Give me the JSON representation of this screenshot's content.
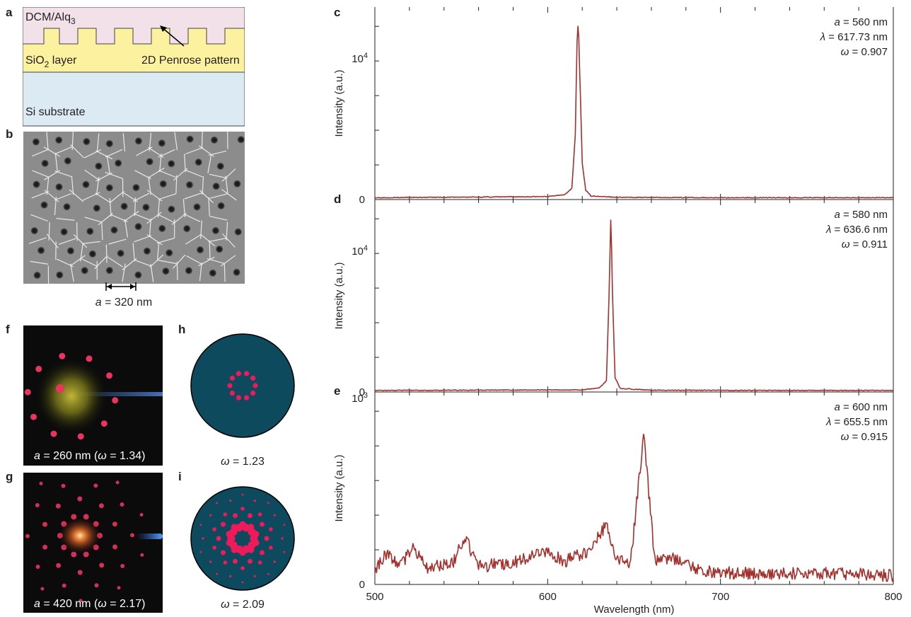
{
  "panel_labels": {
    "a": "a",
    "b": "b",
    "c": "c",
    "d": "d",
    "e": "e",
    "f": "f",
    "g": "g",
    "h": "h",
    "i": "i"
  },
  "panel_a": {
    "top_layer": "DCM/Alq",
    "top_layer_sub": "3",
    "middle_layer": "SiO",
    "middle_layer_sub": "2",
    "middle_layer_suffix": " layer",
    "pattern_label": "2D Penrose pattern",
    "substrate_label": "Si substrate",
    "colors": {
      "top": "#f3e1ea",
      "middle": "#fbf19f",
      "substrate": "#dceaf4"
    }
  },
  "panel_b": {
    "scale_var": "a",
    "scale_text": " = 320 nm"
  },
  "panel_f": {
    "var": "a",
    "text1": " = 260 nm (",
    "omega": "ω",
    "text2": " = 1.34)"
  },
  "panel_g": {
    "var": "a",
    "text1": " = 420 nm (",
    "omega": "ω",
    "text2": " = 2.17)"
  },
  "panel_h": {
    "omega": "ω",
    "value": " = 1.23"
  },
  "panel_i": {
    "omega": "ω",
    "value": " = 2.09"
  },
  "spectra_colors": {
    "line": "#a3302c",
    "disk": "#0d4a5e",
    "spots": "#ee1a5a"
  },
  "chart_data": [
    {
      "type": "line",
      "panel": "c",
      "ylabel": "Intensity (a.u.)",
      "y_ticks": [
        "10^4",
        "0"
      ],
      "ylim": [
        0,
        25000
      ],
      "annotation": [
        "a = 560 nm",
        "λ = 617.73 nm",
        "ω = 0.907"
      ],
      "peak_wavelength": 617.73,
      "peak_intensity": 25000,
      "baseline": 200,
      "x": [
        500,
        600,
        610,
        614,
        616,
        617,
        617.73,
        618.5,
        620,
        622,
        625,
        640,
        700,
        800
      ],
      "values": [
        150,
        300,
        600,
        1500,
        9000,
        22000,
        25000,
        18000,
        5000,
        1200,
        400,
        200,
        150,
        150
      ]
    },
    {
      "type": "line",
      "panel": "d",
      "ylabel": "Intensity (a.u.)",
      "y_ticks": [
        "10^4",
        "0"
      ],
      "ylim": [
        0,
        26000
      ],
      "annotation": [
        "a = 580 nm",
        "λ = 636.6 nm",
        "ω = 0.911"
      ],
      "peak_wavelength": 636.6,
      "peak_intensity": 26000,
      "baseline": 150,
      "x": [
        500,
        620,
        630,
        634,
        635.5,
        636.6,
        637.5,
        639,
        642,
        660,
        700,
        800
      ],
      "values": [
        120,
        200,
        500,
        1500,
        14000,
        26000,
        14000,
        2000,
        400,
        150,
        120,
        120
      ]
    },
    {
      "type": "line",
      "panel": "e",
      "ylabel": "Intensity (a.u.)",
      "xlabel": "Wavelength (nm)",
      "x_ticks": [
        500,
        600,
        700,
        800
      ],
      "y_ticks": [
        "10^3",
        "0"
      ],
      "ylim": [
        0,
        1000
      ],
      "annotation": [
        "a = 600 nm",
        "λ = 655.5 nm",
        "ω = 0.915"
      ],
      "peak_wavelength": 655.5,
      "peak_intensity": 830,
      "x": [
        500,
        507,
        515,
        522,
        530,
        545,
        552,
        560,
        580,
        600,
        610,
        625,
        634,
        640,
        648,
        655.5,
        662,
        670,
        690,
        720,
        760,
        800
      ],
      "values": [
        60,
        170,
        90,
        200,
        80,
        110,
        250,
        90,
        110,
        170,
        120,
        180,
        330,
        120,
        110,
        830,
        120,
        140,
        60,
        50,
        50,
        40
      ]
    }
  ]
}
